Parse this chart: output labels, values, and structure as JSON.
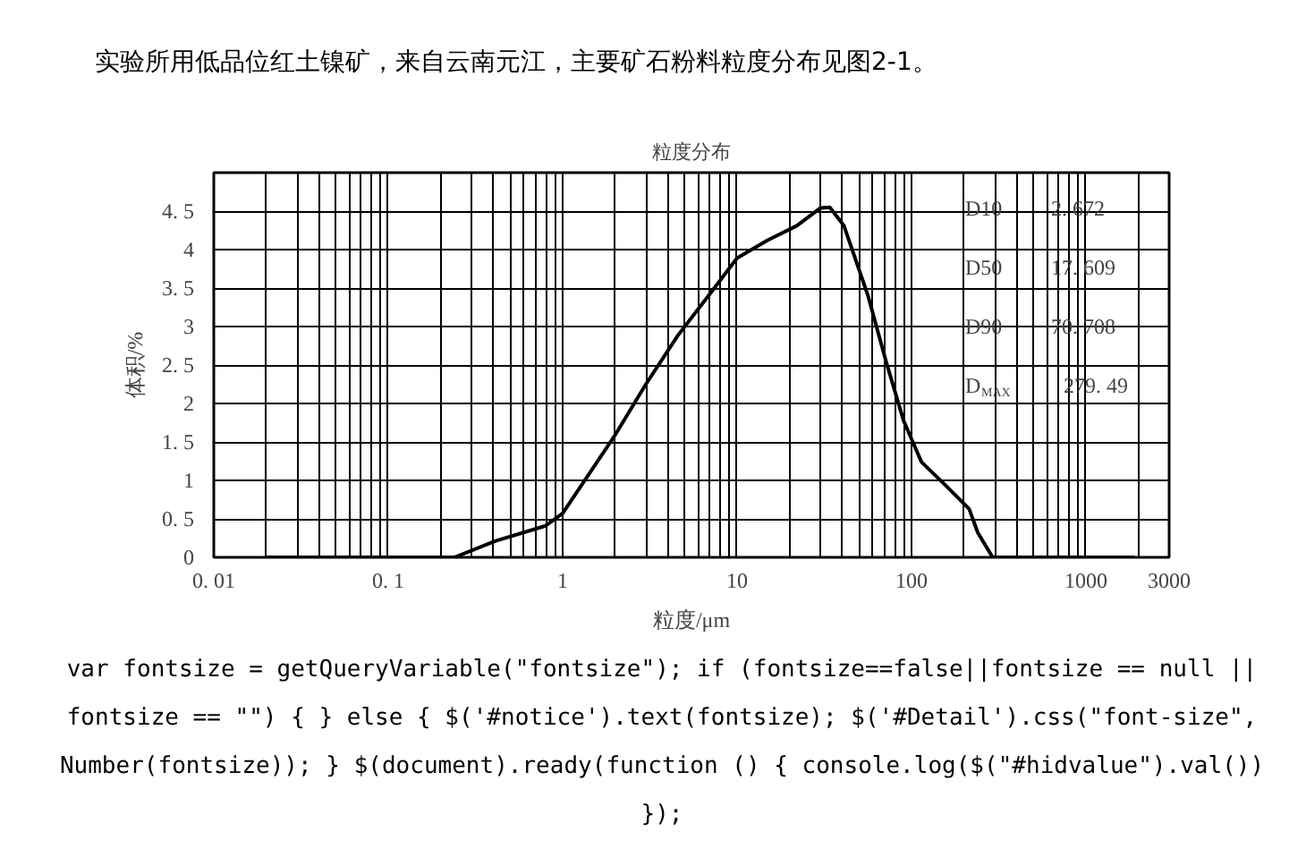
{
  "chart_data": {
    "type": "line",
    "title": "粒度分布",
    "xlabel": "粒度/μm",
    "ylabel": "体积/%",
    "log": "x",
    "grid": true,
    "marker": "none",
    "line_style": "solid",
    "xlim": [
      0.01,
      3000
    ],
    "ylim": [
      0,
      5
    ],
    "xticks": [
      {
        "value": 0.01,
        "label": "0. 01"
      },
      {
        "value": 0.1,
        "label": "0. 1"
      },
      1,
      10,
      100,
      1000,
      3000
    ],
    "yticks": [
      0,
      {
        "value": 0.5,
        "label": "0. 5"
      },
      1,
      {
        "value": 1.5,
        "label": "1. 5"
      },
      2,
      {
        "value": 2.5,
        "label": "2. 5"
      },
      3,
      {
        "value": 3.5,
        "label": "3. 5"
      },
      4,
      {
        "value": 4.5,
        "label": "4. 5"
      }
    ],
    "series": [
      {
        "color": "#000000",
        "x": [
          0.02,
          0.1,
          0.24,
          0.41,
          0.8,
          1,
          2,
          3,
          4.6,
          6.8,
          10,
          14.9,
          22,
          30,
          34,
          41,
          56.5,
          71.4,
          90,
          114,
          156,
          214,
          240,
          292,
          1000,
          1900
        ],
        "values": [
          0,
          0,
          0,
          0.21,
          0.41,
          0.57,
          1.59,
          2.25,
          2.89,
          3.39,
          3.89,
          4.12,
          4.31,
          4.54,
          4.55,
          4.31,
          3.39,
          2.55,
          1.78,
          1.24,
          0.94,
          0.63,
          0.32,
          0,
          0,
          0
        ]
      }
    ],
    "annotations": [
      "实验所用低品位红土镍矿，来自云南元江，主要矿石粉料粒度分布见图2-1。",
      "D10",
      "2. 672",
      "D50",
      "17. 609",
      "D90",
      "70. 708",
      "D$_{MAX}$",
      "279. 49",
      "var fontsize = getQueryVariable(\"fontsize\"); if (fontsize==false||fontsize == null || fontsize == \"\") { } else { $('#notice').text(fontsize); $('#Detail').css(\"font-size\", Number(fontsize)); } $(document).ready(function () { console.log($(\"#hidvalue\").val()) });"
    ]
  }
}
